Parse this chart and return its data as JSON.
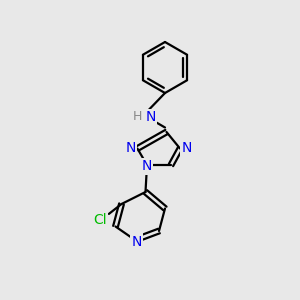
{
  "background_color": "#e8e8e8",
  "bond_color": "#000000",
  "atom_colors": {
    "N": "#0000ee",
    "Cl": "#00bb00",
    "C": "#000000",
    "H": "#888888"
  },
  "bond_width": 1.6,
  "title": ""
}
